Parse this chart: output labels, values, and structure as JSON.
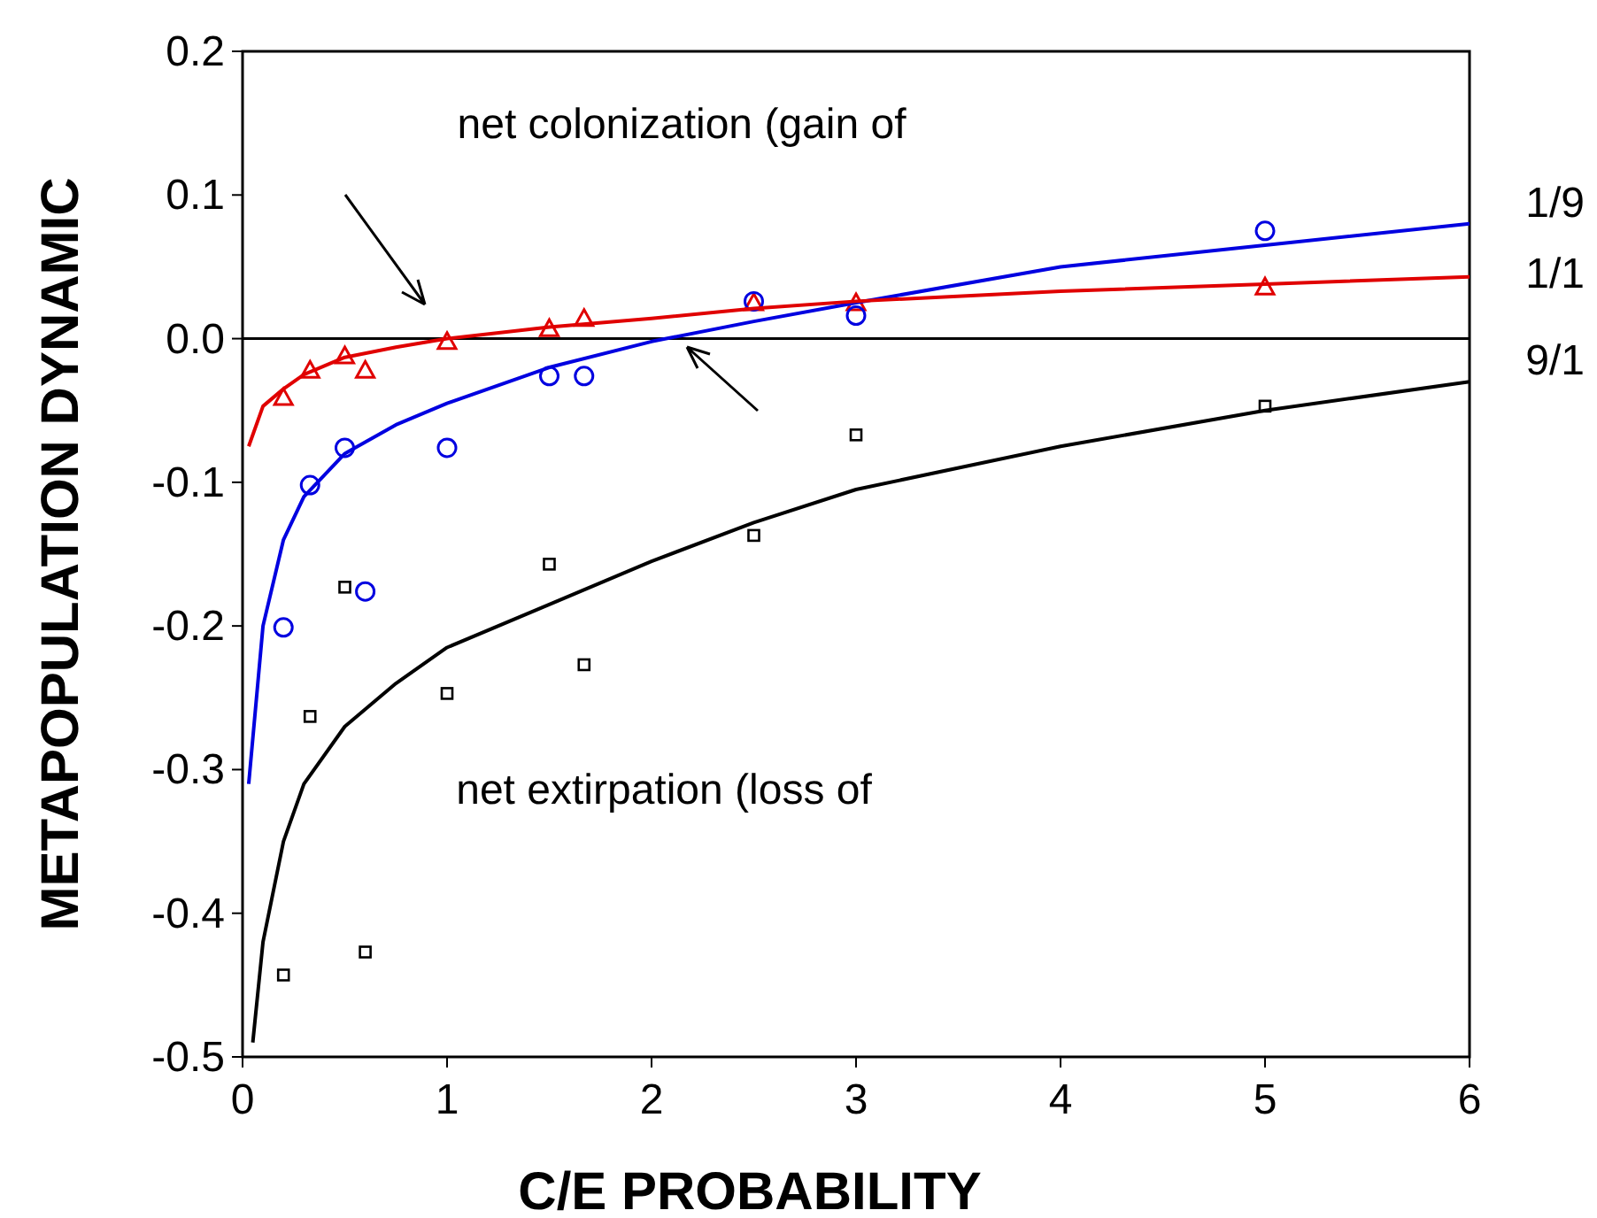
{
  "chart_data": {
    "type": "scatter",
    "xlabel": "C/E PROBABILITY",
    "ylabel": "METAPOPULATION DYNAMIC",
    "xlim": [
      0,
      6
    ],
    "ylim": [
      -0.5,
      0.2
    ],
    "xticks": [
      0,
      1,
      2,
      3,
      4,
      5,
      6
    ],
    "yticks": [
      {
        "value": -0.5,
        "label": "-0.5"
      },
      {
        "value": -0.4,
        "label": "-0.4"
      },
      {
        "value": -0.3,
        "label": "-0.3"
      },
      {
        "value": -0.2,
        "label": "-0.2"
      },
      {
        "value": -0.1,
        "label": "-0.1"
      },
      {
        "value": 0,
        "label": "0.0"
      },
      {
        "value": 0.1,
        "label": "0.1"
      },
      {
        "value": 0.2,
        "label": "0.2"
      }
    ],
    "grid": false,
    "ref_lines": [
      {
        "axis": "y",
        "value": 0,
        "color": "#000000"
      }
    ],
    "annotations": [
      "net colonization (gain of",
      "net extirpation (loss of"
    ],
    "series": [
      {
        "marker": "triangle",
        "color": "#e00000",
        "x": [
          0.2,
          0.33,
          0.5,
          0.6,
          1,
          1.5,
          1.67,
          2.5,
          3,
          5
        ],
        "values": [
          -0.041,
          -0.022,
          -0.012,
          -0.022,
          -0.002,
          0.007,
          0.014,
          0.025,
          0.025,
          0.036
        ]
      },
      {
        "marker": "circle",
        "color": "#0000e0",
        "x": [
          0.2,
          0.33,
          0.5,
          0.6,
          1,
          1.5,
          1.67,
          2.5,
          3,
          5
        ],
        "values": [
          -0.201,
          -0.102,
          -0.076,
          -0.176,
          -0.076,
          -0.026,
          -0.026,
          0.026,
          0.016,
          0.075
        ]
      },
      {
        "marker": "square",
        "color": "#000000",
        "x": [
          0.2,
          0.33,
          0.5,
          0.6,
          1,
          1.5,
          1.67,
          2.5,
          3,
          5
        ],
        "values": [
          -0.443,
          -0.263,
          -0.173,
          -0.427,
          -0.247,
          -0.157,
          -0.227,
          -0.137,
          -0.067,
          -0.047
        ]
      },
      {
        "type": "line",
        "marker": "none",
        "name": "1/9",
        "color": "#0000e0",
        "x": [
          0.03,
          0.1,
          0.2,
          0.3,
          0.5,
          0.75,
          1,
          1.5,
          2,
          2.5,
          3,
          4,
          5,
          6
        ],
        "values": [
          -0.31,
          -0.2,
          -0.14,
          -0.11,
          -0.08,
          -0.06,
          -0.045,
          -0.02,
          -0.002,
          0.012,
          0.025,
          0.05,
          0.065,
          0.08
        ]
      },
      {
        "type": "line",
        "marker": "none",
        "name": "1/1",
        "color": "#e00000",
        "x": [
          0.03,
          0.1,
          0.2,
          0.3,
          0.5,
          0.75,
          1,
          1.5,
          2,
          2.5,
          3,
          4,
          5,
          6
        ],
        "values": [
          -0.075,
          -0.047,
          -0.035,
          -0.025,
          -0.013,
          -0.006,
          0,
          0.008,
          0.014,
          0.021,
          0.026,
          0.033,
          0.038,
          0.043
        ]
      },
      {
        "type": "line",
        "marker": "none",
        "name": "9/1",
        "color": "#000000",
        "x": [
          0.05,
          0.1,
          0.2,
          0.3,
          0.5,
          0.75,
          1,
          1.5,
          2,
          2.5,
          3,
          4,
          5,
          6
        ],
        "values": [
          -0.49,
          -0.42,
          -0.35,
          -0.31,
          -0.27,
          -0.24,
          -0.215,
          -0.185,
          -0.155,
          -0.128,
          -0.105,
          -0.075,
          -0.05,
          -0.03
        ]
      }
    ]
  }
}
